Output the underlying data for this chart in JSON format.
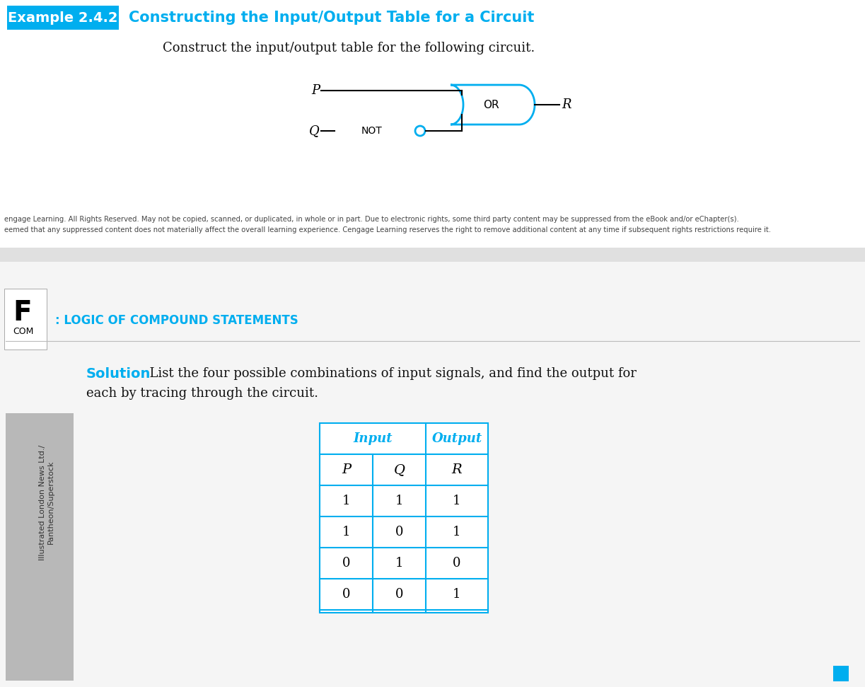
{
  "title_cyan": "#00AEEF",
  "example_bg": "#00AEEF",
  "example_text": "Example 2.4.2",
  "title_text": "Constructing the Input/Output Table for a Circuit",
  "subtitle_text": "Construct the input/output table for the following circuit.",
  "section_header": ": LOGIC OF COMPOUND STATEMENTS",
  "solution_text": "Solution",
  "copyright_line1": "engage Learning. All Rights Reserved. May not be copied, scanned, or duplicated, in whole or in part. Due to electronic rights, some third party content may be suppressed from the eBook and/or eChapter(s).",
  "copyright_line2": "eemed that any suppressed content does not materially affect the overall learning experience. Cengage Learning reserves the right to remove additional content at any time if subsequent rights restrictions require it.",
  "table_header_input": "Input",
  "table_header_output": "Output",
  "table_data": [
    [
      1,
      1,
      1
    ],
    [
      1,
      0,
      1
    ],
    [
      0,
      1,
      0
    ],
    [
      0,
      0,
      1
    ]
  ],
  "sidebar_text1": "Illustrated London News Ltd./",
  "sidebar_text2": "Pantheon/Superstock",
  "sidebar_F": "F",
  "sidebar_COM": "COM",
  "bg_white": "#FFFFFF",
  "text_dark": "#111111"
}
